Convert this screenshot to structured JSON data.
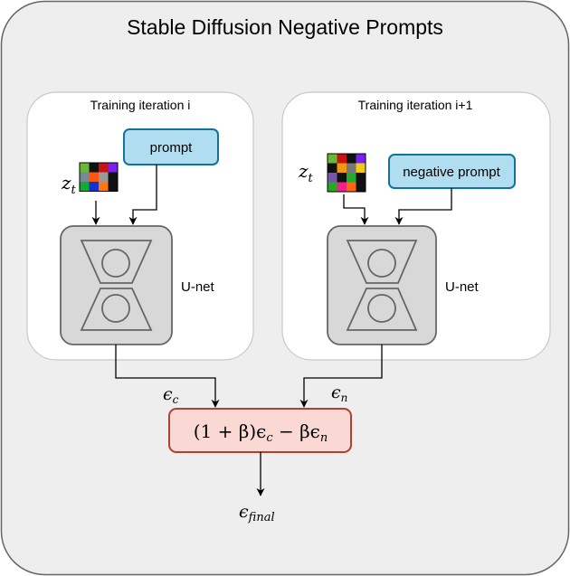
{
  "title": "Stable Diffusion Negative Prompts",
  "left_panel": {
    "label": "Training iteration i",
    "latent_symbol": "z",
    "latent_subscript": "t",
    "prompt_label": "prompt",
    "unet_label": "U-net"
  },
  "right_panel": {
    "label": "Training iteration i+1",
    "latent_symbol": "z",
    "latent_subscript": "t",
    "prompt_label": "negative prompt",
    "unet_label": "U-net"
  },
  "edges": {
    "eps_c_symbol": "ϵ",
    "eps_c_subscript": "c",
    "eps_n_symbol": "ϵ",
    "eps_n_subscript": "n"
  },
  "formula": {
    "part1": "(1 + β)ϵ",
    "sub1": "c",
    "part2": " − βϵ",
    "sub2": "n"
  },
  "output": {
    "symbol": "ϵ",
    "subscript": "final"
  },
  "latent_grid_colors": {
    "left": [
      "#66bb33",
      "#111111",
      "#cc1111",
      "#7722ee",
      "#778899",
      "#ff5511",
      "#999999",
      "#111111",
      "#11aa33",
      "#1133cc",
      "#ff7711",
      "#111111"
    ],
    "right": [
      "#66bb33",
      "#cc1111",
      "#111111",
      "#7722ee",
      "#111111",
      "#ee9911",
      "#777777",
      "#eecc11",
      "#7755aa",
      "#111111",
      "#22aa33",
      "#111111",
      "#22aa22",
      "#ee2288",
      "#ff6611",
      "#111111"
    ]
  },
  "colors": {
    "outer_bg": "#eeeeee",
    "outer_border": "#666666",
    "panel_bg": "#ffffff",
    "panel_border": "#c8c8c8",
    "prompt_fill": "#b1ddf0",
    "prompt_border": "#10739e",
    "unet_fill": "#d8d8d8",
    "unet_border": "#666666",
    "formula_fill": "#fad9d5",
    "formula_border": "#ae4132",
    "edge": "#000000"
  }
}
